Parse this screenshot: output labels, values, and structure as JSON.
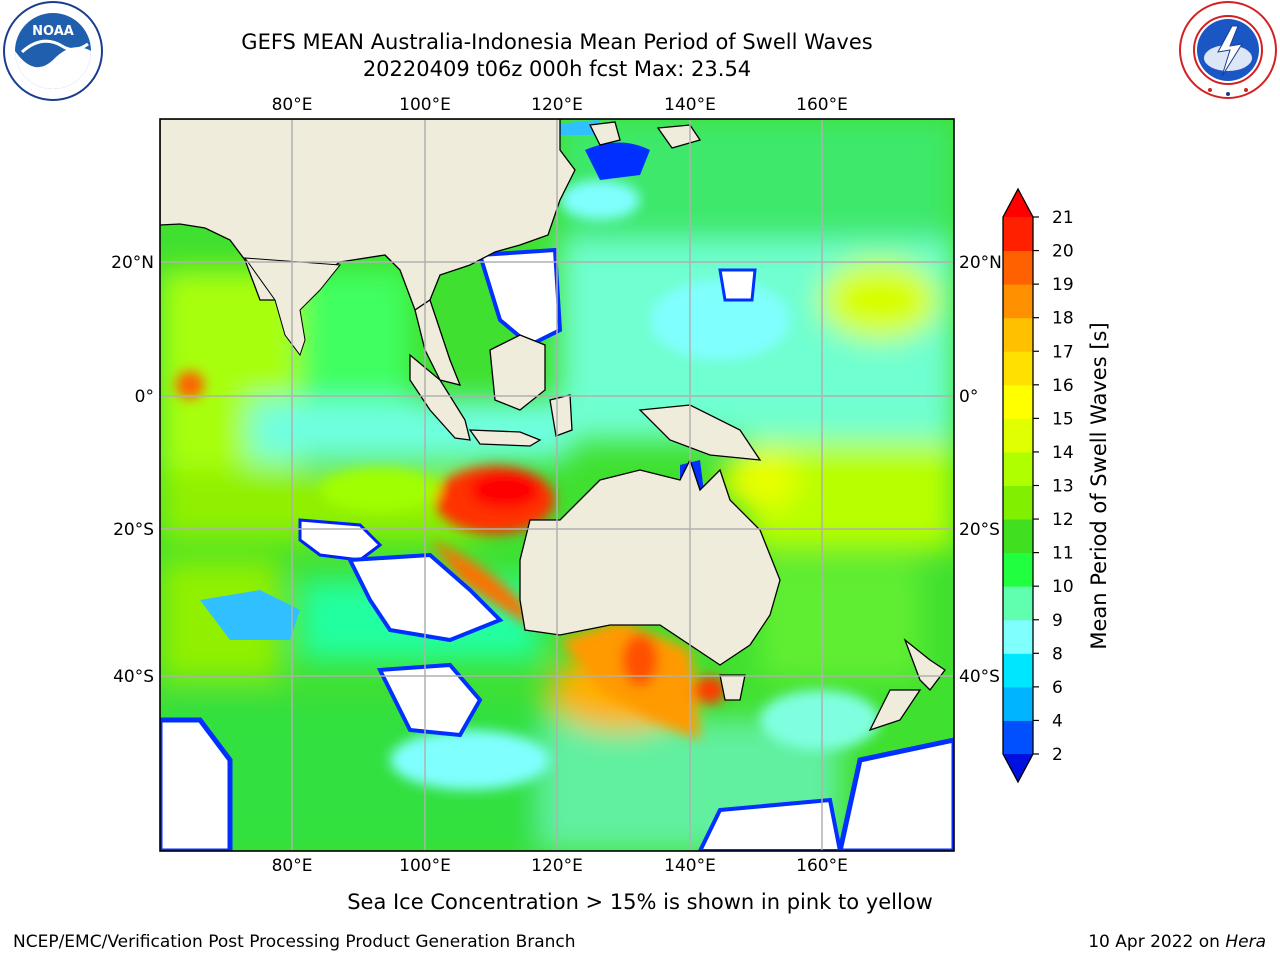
{
  "header": {
    "title_line1": "GEFS MEAN Australia-Indonesia Mean Period of Swell Waves",
    "title_line2": "20220409 t06z 000h fcst   Max: 23.54"
  },
  "logos": {
    "left": "noaa-logo",
    "right": "nws-logo",
    "left_text": "NOAA"
  },
  "map": {
    "lon_labels": [
      "80°E",
      "100°E",
      "120°E",
      "140°E",
      "160°E"
    ],
    "lat_labels": [
      "20°N",
      "0°",
      "20°S",
      "40°S"
    ],
    "land_color": "#efecdc",
    "grid_color": "#b0b0b0"
  },
  "colorbar": {
    "label": "Mean Period of Swell Waves [s]",
    "ticks": [
      "2",
      "4",
      "6",
      "8",
      "9",
      "10",
      "11",
      "12",
      "13",
      "14",
      "15",
      "16",
      "17",
      "18",
      "19",
      "20",
      "21"
    ],
    "colors": [
      "#0050ff",
      "#00b4ff",
      "#00e6ff",
      "#80ffff",
      "#60ffb0",
      "#20ff40",
      "#40e020",
      "#80f000",
      "#b0ff00",
      "#e0ff00",
      "#ffff00",
      "#ffe000",
      "#ffc000",
      "#ff9000",
      "#ff6000",
      "#ff2000"
    ],
    "under_color": "#0010e0",
    "over_color": "#ff0000"
  },
  "caption": "Sea Ice Concentration > 15% is shown in pink to yellow",
  "footer": {
    "left": "NCEP/EMC/Verification Post Processing Product Generation Branch",
    "right_date": "10 Apr 2022 on ",
    "right_host": "Hera"
  }
}
